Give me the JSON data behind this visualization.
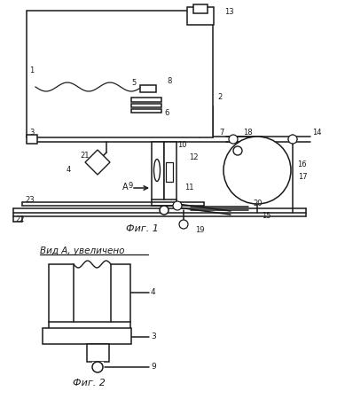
{
  "bg_color": "#ffffff",
  "line_color": "#1a1a1a",
  "lw": 1.1,
  "fig1_caption": "Фиг. 1",
  "fig2_caption": "Фиг. 2",
  "vid_label": "Вид А, увеличено"
}
